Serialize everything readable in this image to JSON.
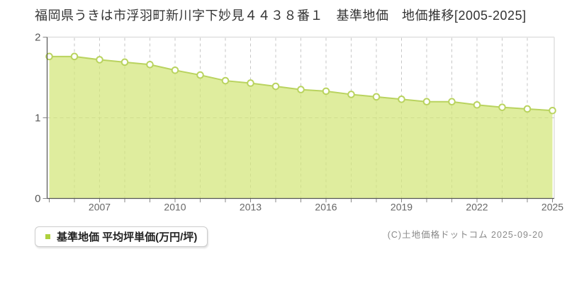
{
  "page": {
    "title": "福岡県うきは市浮羽町新川字下妙見４４３８番１　基準地価　地価推移[2005-2025]"
  },
  "legend": {
    "label": "基準地価 平均坪単価(万円/坪)",
    "marker_color": "#aed13e"
  },
  "footer": {
    "copyright": "(C)土地価格ドットコム 2025-09-20"
  },
  "chart_data": {
    "type": "area",
    "title": "福岡県うきは市浮羽町新川字下妙見４４３８番１ 基準地価 地価推移[2005-2025]",
    "series_name": "基準地価 平均坪単価(万円/坪)",
    "x": [
      2005,
      2006,
      2007,
      2008,
      2009,
      2010,
      2011,
      2012,
      2013,
      2014,
      2015,
      2016,
      2017,
      2018,
      2019,
      2020,
      2021,
      2022,
      2023,
      2024,
      2025
    ],
    "values": [
      1.76,
      1.76,
      1.72,
      1.69,
      1.66,
      1.59,
      1.53,
      1.46,
      1.43,
      1.39,
      1.35,
      1.33,
      1.29,
      1.26,
      1.23,
      1.2,
      1.2,
      1.16,
      1.13,
      1.11,
      1.09
    ],
    "xlabel": "",
    "ylabel": "",
    "ylim": [
      0,
      2
    ],
    "yticks": [
      0,
      1,
      2
    ],
    "xtick_labels": [
      "2007",
      "2010",
      "2013",
      "2016",
      "2019",
      "2022",
      "2025"
    ],
    "grid": {
      "vertical": "dashed line at every year",
      "horizontal": "dashed line at y=1"
    },
    "legend_position": "bottom-left",
    "colors": {
      "area_fill": "rgba(210,230,120,0.72)",
      "area_fill_flat": "#dcec9f",
      "line": "#b9d35f",
      "marker_fill": "#ffffff",
      "marker_stroke": "#b9d35f",
      "grid": "#c6c6c6",
      "plot_border": "#e0e0e0",
      "axis": "#555555",
      "tick": "#888888"
    }
  }
}
